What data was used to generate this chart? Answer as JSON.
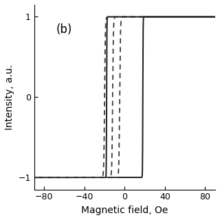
{
  "title": "(b)",
  "xlabel": "Magnetic field, Oe",
  "ylabel": "Intensity, a.u.",
  "xlim": [
    -90,
    90
  ],
  "ylim": [
    -1.15,
    1.15
  ],
  "xticks": [
    -80,
    -40,
    0,
    40,
    80
  ],
  "yticks": [
    -1,
    0,
    1
  ],
  "background_color": "#ffffff",
  "solid_loop": {
    "Hc": 18,
    "k": 0.12,
    "color": "#1a1a1a",
    "linewidth": 1.4
  },
  "dashed_curves": [
    {
      "shift": -5,
      "k": 0.045,
      "color": "#3a3a3a",
      "linewidth": 1.3
    },
    {
      "shift": -12,
      "k": 0.045,
      "color": "#3a3a3a",
      "linewidth": 1.3
    },
    {
      "shift": -20,
      "k": 0.045,
      "color": "#3a3a3a",
      "linewidth": 1.3
    }
  ]
}
